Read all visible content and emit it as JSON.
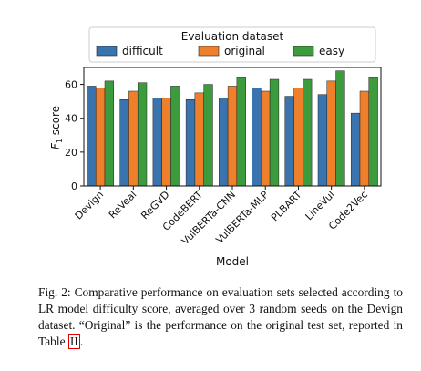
{
  "chart_data": {
    "type": "bar",
    "xlabel": "Model",
    "ylabel_main": "F",
    "ylabel_sub": "1",
    "ylabel_rest": " score",
    "ylim": [
      0,
      70
    ],
    "yticks": [
      0,
      20,
      40,
      60
    ],
    "grid": false,
    "legend": {
      "title": "Evaluation dataset",
      "placement": "top"
    },
    "categories": [
      "Devign",
      "ReVeal",
      "ReGVD",
      "CodeBERT",
      "VulBERTa-CNN",
      "VulBERTa-MLP",
      "PLBART",
      "LineVul",
      "Code2Vec"
    ],
    "series": [
      {
        "name": "difficult",
        "color": "#3a74ae",
        "values": [
          59,
          51,
          52,
          51,
          52,
          58,
          53,
          54,
          43
        ]
      },
      {
        "name": "original",
        "color": "#ee7f2b",
        "values": [
          58,
          56,
          52,
          55,
          59,
          56,
          58,
          62,
          56
        ]
      },
      {
        "name": "easy",
        "color": "#3c9b3c",
        "values": [
          62,
          61,
          59,
          60,
          64,
          63,
          63,
          68,
          64
        ]
      }
    ]
  },
  "caption": {
    "label": "Fig. 2:",
    "text": " Comparative performance on evaluation sets selected according to LR model difficulty score, averaged over 3 random seeds on the Devign dataset. “Original” is the performance on the original test set, reported in Table ",
    "table_ref": "II",
    "end": "."
  }
}
